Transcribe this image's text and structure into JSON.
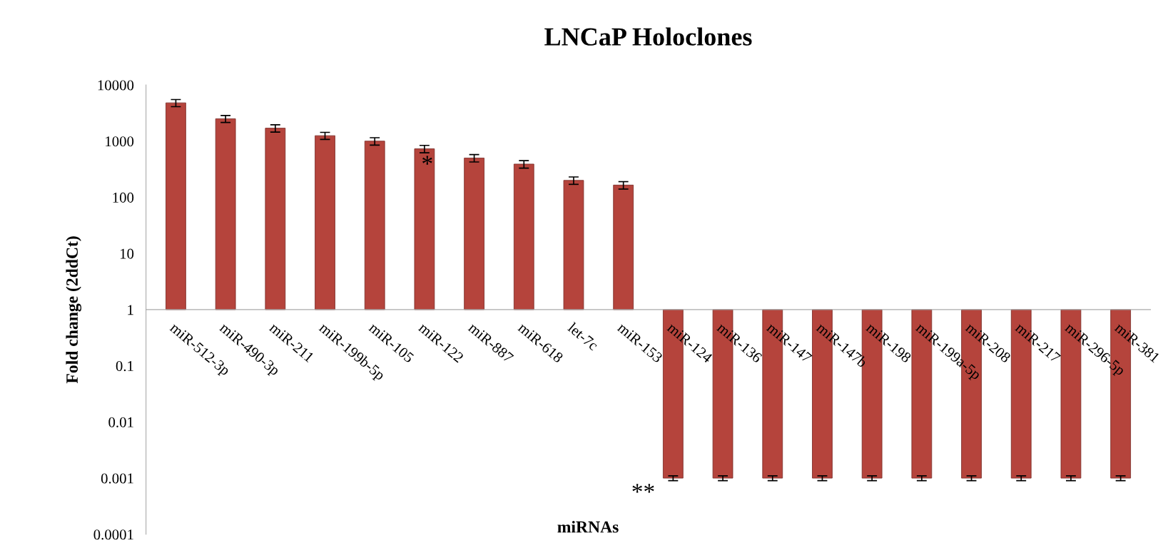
{
  "chart_data": {
    "type": "bar",
    "title": "LNCaP Holoclones",
    "xlabel": "miRNAs",
    "ylabel": "Fold change (2ddCt)",
    "categories": [
      "miR-512-3p",
      "miR-490-3p",
      "miR-211",
      "miR-199b-5p",
      "miR-105",
      "miR-122",
      "miR-887",
      "miR-618",
      "let-7c",
      "miR-153",
      "miR-124",
      "miR-136",
      "miR-147",
      "miR-147b",
      "miR-198",
      "miR-199a-5p",
      "miR-208",
      "miR-217",
      "miR-296-5p",
      "miR-381"
    ],
    "values": [
      4799,
      2499,
      1699,
      1249,
      999,
      729,
      499,
      389,
      199,
      164,
      -0.999,
      -0.999,
      -0.999,
      -0.999,
      -0.999,
      -0.999,
      -0.999,
      -0.999,
      -0.999,
      -0.999
    ],
    "base": [
      1,
      1,
      1,
      1,
      1,
      1,
      1,
      1,
      1,
      1,
      1,
      1,
      1,
      1,
      1,
      1,
      1,
      1,
      1,
      1
    ],
    "errors": [
      700,
      350,
      250,
      180,
      150,
      110,
      75,
      60,
      30,
      25,
      0.0001,
      0.0001,
      0.0001,
      0.0001,
      0.0001,
      0.0001,
      0.0001,
      0.0001,
      0.0001,
      0.0001
    ],
    "color": "#b5443c",
    "log": "y",
    "ylim": [
      0.0001,
      10000
    ],
    "yticks": [
      0.0001,
      0.001,
      0.01,
      0.1,
      1,
      10,
      100,
      1000,
      10000
    ],
    "grid": false,
    "annotations": [
      "*",
      "**"
    ]
  }
}
